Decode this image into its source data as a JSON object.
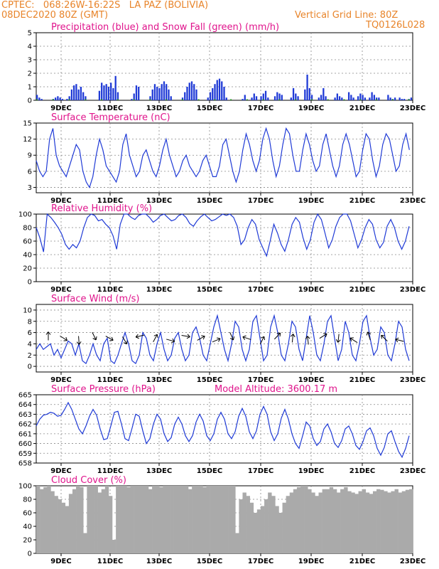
{
  "header": {
    "left_line1": "CPTEC:   068:26W-16:22S   LA PAZ (BOLIVIA)",
    "left_line2": "08DEC2020 80Z (GMT)",
    "right_line1": "Vertical Grid Line: 80Z",
    "right_line2": "TQ0126L028"
  },
  "x_tick_labels": [
    "9DEC",
    "11DEC",
    "13DEC",
    "15DEC",
    "17DEC",
    "19DEC",
    "21DEC",
    "23DEC"
  ],
  "colors": {
    "series": "#1f3ad6",
    "snow": "#1f9a1f",
    "cloud": "#aaaaaa",
    "title": "#e0148c",
    "header": "#e8842a"
  },
  "chart_data": [
    {
      "id": "precip",
      "type": "bar",
      "title": "Precipitation (blue) and Snow Fall (green) (mm/h)",
      "ylim": [
        0,
        5
      ],
      "yticks": [
        0,
        1,
        2,
        3,
        4,
        5
      ],
      "grid": true,
      "values": [
        0.4,
        0.2,
        0.1,
        0,
        0,
        0,
        0,
        0.1,
        0.2,
        0.3,
        0.2,
        0.1,
        0,
        0.1,
        0.3,
        0.8,
        1.1,
        1.2,
        0.8,
        1.0,
        0.6,
        0.3,
        0,
        0,
        0,
        0,
        0,
        0.7,
        1.3,
        1.1,
        1.2,
        1.0,
        1.3,
        0.9,
        1.8,
        0.6,
        0,
        0,
        0,
        0,
        0,
        0.1,
        0.5,
        1.1,
        1.0,
        0,
        0,
        0,
        0,
        0.3,
        0.8,
        1.2,
        1.0,
        0.9,
        1.2,
        1.4,
        1.2,
        0.8,
        0.3,
        0,
        0,
        0,
        0,
        0.2,
        0.6,
        1.0,
        1.3,
        1.4,
        1.2,
        0.8,
        0,
        0,
        0,
        0,
        0.2,
        0.6,
        0.9,
        1.2,
        1.5,
        1.6,
        1.4,
        1.0,
        0.2,
        0,
        0,
        0,
        0,
        0,
        0,
        0.1,
        0.4,
        0,
        0,
        0.2,
        0.5,
        0.3,
        0,
        0.3,
        0.5,
        0.7,
        0.2,
        0,
        0,
        0.3,
        0.6,
        0.5,
        0.4,
        0,
        0,
        0,
        0.2,
        0.9,
        0.5,
        0.3,
        0,
        0,
        0.8,
        1.9,
        0.9,
        0.4,
        0,
        0,
        0.2,
        0.4,
        0.9,
        0.3,
        0,
        0,
        0,
        0.2,
        0.5,
        0.3,
        0.2,
        0,
        0,
        0.6,
        0.4,
        0.2,
        0,
        0.3,
        0.5,
        0.4,
        0.2,
        0,
        0.2,
        0.6,
        0.4,
        0.2,
        0.2,
        0,
        0,
        0,
        0.4,
        0.2,
        0.1,
        0.2,
        0,
        0.2,
        0.1,
        0.1,
        0,
        0.1,
        0.2
      ]
    },
    {
      "id": "temp",
      "type": "line",
      "title": "Surface Temperature (nC)",
      "ylim": [
        2,
        15
      ],
      "yticks": [
        3,
        6,
        9,
        12,
        15
      ],
      "grid": true,
      "values": [
        8,
        6,
        5,
        6,
        12,
        14,
        9,
        7,
        6,
        5,
        7,
        9,
        11,
        10,
        6,
        4,
        3,
        5,
        9,
        12,
        10,
        7,
        6,
        5,
        4,
        6,
        11,
        13,
        9,
        7,
        5,
        6,
        9,
        10,
        8,
        6,
        5,
        7,
        10,
        12,
        9,
        7,
        5,
        6,
        8,
        9,
        7,
        6,
        5,
        6,
        8,
        9,
        7,
        5,
        5,
        7,
        11,
        12,
        9,
        6,
        4,
        6,
        10,
        13,
        11,
        8,
        6,
        8,
        12,
        14,
        12,
        8,
        5,
        7,
        11,
        14,
        13,
        9,
        6,
        6,
        10,
        13,
        11,
        8,
        6,
        7,
        11,
        13,
        10,
        7,
        5,
        7,
        11,
        13,
        11,
        8,
        5,
        6,
        10,
        13,
        12,
        8,
        5,
        7,
        11,
        13,
        12,
        9,
        6,
        7,
        11,
        13,
        10
      ]
    },
    {
      "id": "rh",
      "type": "line",
      "title": "Relative Humidity (%)",
      "ylim": [
        0,
        100
      ],
      "yticks": [
        0,
        20,
        40,
        60,
        80,
        100
      ],
      "grid": true,
      "values": [
        80,
        65,
        44,
        100,
        95,
        88,
        80,
        70,
        55,
        48,
        55,
        50,
        60,
        80,
        95,
        100,
        98,
        90,
        92,
        85,
        80,
        68,
        48,
        85,
        100,
        100,
        95,
        92,
        98,
        100,
        100,
        95,
        88,
        92,
        98,
        100,
        95,
        90,
        92,
        98,
        100,
        95,
        86,
        82,
        90,
        96,
        100,
        95,
        90,
        92,
        96,
        100,
        98,
        100,
        95,
        82,
        55,
        62,
        80,
        92,
        85,
        62,
        50,
        38,
        60,
        85,
        72,
        55,
        45,
        62,
        85,
        95,
        88,
        65,
        48,
        62,
        88,
        100,
        92,
        72,
        50,
        62,
        82,
        95,
        100,
        100,
        90,
        70,
        50,
        62,
        80,
        92,
        85,
        62,
        50,
        58,
        82,
        92,
        80,
        60,
        48,
        60,
        82
      ]
    },
    {
      "id": "wind",
      "type": "line",
      "title": "Surface Wind (m/s)",
      "ylim": [
        -1,
        11
      ],
      "yticks": [
        0,
        2,
        4,
        6,
        8,
        10
      ],
      "grid": true,
      "values": [
        3,
        4,
        3,
        3.5,
        4,
        2,
        3,
        1.5,
        3,
        4.5,
        4,
        2,
        4,
        1,
        0.5,
        2,
        4,
        2,
        1,
        4,
        5,
        1,
        0.5,
        2,
        4,
        6,
        4,
        1,
        0.5,
        2,
        6,
        5,
        2,
        1,
        4,
        6,
        3,
        1,
        2,
        5,
        6,
        3,
        1,
        2,
        6,
        7,
        5,
        2,
        1,
        4,
        7,
        9,
        6,
        3,
        1,
        4,
        8,
        7,
        3,
        1,
        3,
        8,
        9,
        5,
        1,
        2,
        7,
        9,
        6,
        2,
        1,
        4,
        8,
        7,
        3,
        1,
        5,
        9,
        6,
        2,
        1,
        4,
        8,
        9,
        5,
        1,
        3,
        8,
        6,
        2,
        1,
        4,
        8,
        9,
        5,
        2,
        3,
        7,
        6,
        2,
        1,
        4,
        8,
        7,
        3,
        1
      ]
    },
    {
      "id": "pressure",
      "type": "line",
      "title": "Surface Pressure (hPa)",
      "annotation": "Model Altitude: 3600.17 m",
      "ylim": [
        658,
        665
      ],
      "yticks": [
        658,
        659,
        660,
        661,
        662,
        663,
        664,
        665
      ],
      "grid": true,
      "values": [
        661.8,
        662.5,
        662.9,
        663.0,
        663.2,
        663.1,
        662.8,
        662.9,
        663.5,
        664.2,
        663.5,
        662.5,
        661.5,
        661.0,
        661.8,
        662.8,
        663.5,
        662.9,
        661.5,
        660.4,
        660.5,
        661.8,
        663.2,
        663.3,
        662.0,
        660.5,
        660.3,
        661.6,
        663.0,
        662.8,
        661.3,
        660.0,
        660.5,
        662.0,
        663.0,
        662.5,
        661.0,
        660.2,
        660.6,
        662.0,
        662.7,
        662.0,
        660.8,
        660.2,
        660.8,
        662.2,
        663.0,
        662.3,
        660.8,
        660.3,
        661.0,
        662.5,
        663.2,
        662.5,
        661.0,
        660.5,
        661.2,
        662.8,
        663.6,
        662.8,
        661.2,
        660.5,
        661.3,
        663.0,
        663.8,
        663.0,
        661.2,
        660.3,
        661.0,
        662.6,
        663.5,
        662.5,
        661.0,
        660.0,
        659.5,
        660.8,
        662.2,
        661.8,
        660.5,
        659.8,
        660.2,
        661.5,
        662.0,
        661.2,
        660.0,
        659.6,
        660.3,
        661.5,
        661.8,
        661.0,
        659.8,
        659.4,
        660.2,
        661.3,
        661.6,
        660.8,
        659.5,
        658.8,
        659.6,
        661.0,
        661.3,
        660.2,
        659.2,
        658.6,
        659.5,
        660.8
      ]
    },
    {
      "id": "cloud",
      "type": "bar",
      "title": "Cloud Cover (%)",
      "ylim": [
        0,
        100
      ],
      "yticks": [
        0,
        20,
        40,
        60,
        80,
        100
      ],
      "grid": true,
      "values": [
        100,
        95,
        98,
        100,
        92,
        85,
        80,
        75,
        70,
        88,
        95,
        100,
        98,
        30,
        100,
        100,
        100,
        90,
        95,
        100,
        85,
        20,
        100,
        100,
        100,
        98,
        100,
        100,
        100,
        100,
        100,
        95,
        100,
        100,
        98,
        100,
        100,
        100,
        100,
        100,
        100,
        100,
        95,
        100,
        100,
        100,
        98,
        100,
        100,
        100,
        100,
        100,
        100,
        100,
        100,
        30,
        80,
        90,
        85,
        75,
        60,
        65,
        70,
        80,
        90,
        85,
        70,
        60,
        75,
        85,
        90,
        95,
        98,
        100,
        100,
        95,
        90,
        85,
        90,
        95,
        95,
        98,
        95,
        90,
        95,
        98,
        92,
        90,
        88,
        92,
        95,
        90,
        88,
        92,
        95,
        94,
        92,
        90,
        92,
        95,
        90,
        92,
        94,
        95
      ]
    }
  ]
}
